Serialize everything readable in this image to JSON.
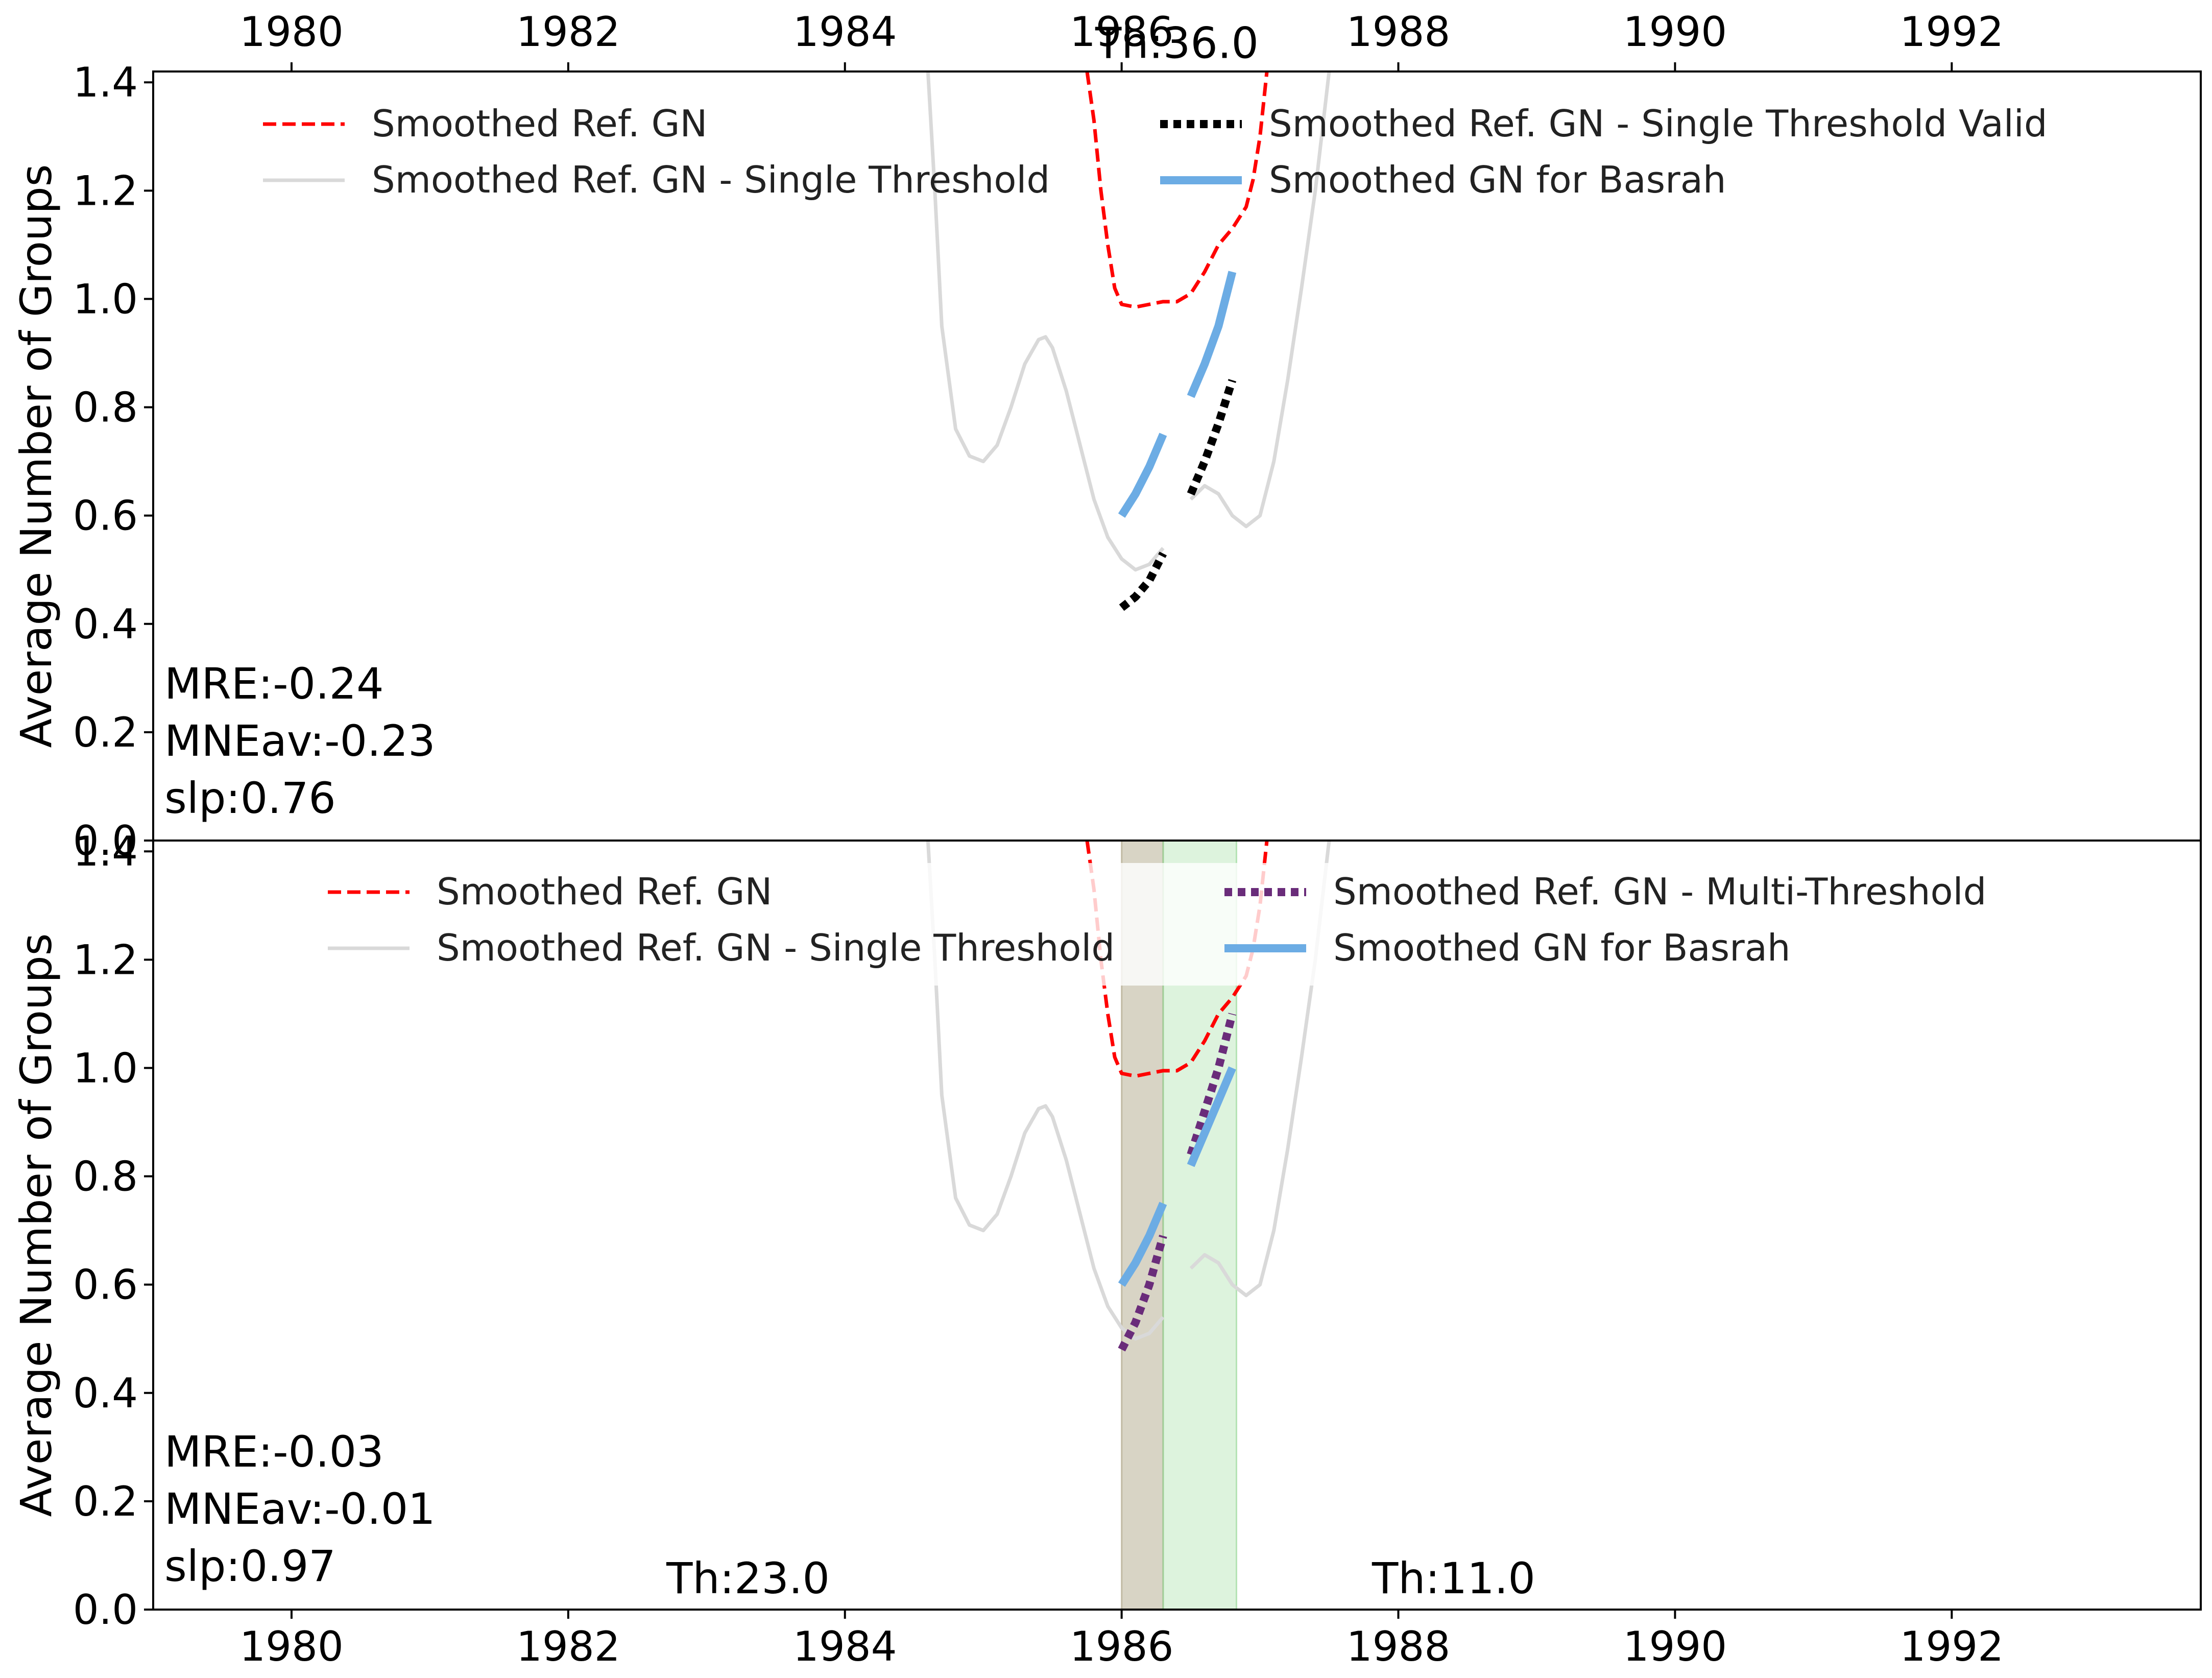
{
  "colors": {
    "ref": "#ff0000",
    "single": "#d9d9d9",
    "valid": "#000000",
    "basrah": "#6cace4",
    "multi": "#6a2c7a",
    "band1": "#a89f7e",
    "band2": "#8fd68f"
  },
  "chart_data": [
    {
      "type": "line",
      "panel": "top",
      "xlim": [
        1979.0,
        1993.8
      ],
      "ylim": [
        0.0,
        1.42
      ],
      "xticks": [
        1980,
        1982,
        1984,
        1986,
        1988,
        1990,
        1992
      ],
      "yticks": [
        0.0,
        0.2,
        0.4,
        0.6,
        0.8,
        1.0,
        1.2,
        1.4
      ],
      "ylabel": "Average Number of Groups",
      "stats": {
        "mre": "MRE:-0.24",
        "mneav": "MNEav:-0.23",
        "slp": "slp:0.76"
      },
      "threshold_labels": [
        {
          "text": "Th:36.0",
          "x": 1986.4,
          "y": 1.445
        }
      ],
      "legend": [
        "Smoothed Ref. GN",
        "Smoothed Ref. GN - Single Threshold Valid",
        "Smoothed Ref. GN - Single Threshold",
        "Smoothed GN for Basrah"
      ],
      "legend_position": "top",
      "series": [
        {
          "name": "Smoothed Ref. GN",
          "style": "ref",
          "points": [
            [
              1985.75,
              1.42
            ],
            [
              1985.8,
              1.33
            ],
            [
              1985.85,
              1.2
            ],
            [
              1985.9,
              1.1
            ],
            [
              1985.95,
              1.02
            ],
            [
              1986.0,
              0.99
            ],
            [
              1986.1,
              0.985
            ],
            [
              1986.2,
              0.99
            ],
            [
              1986.3,
              0.995
            ],
            [
              1986.4,
              0.995
            ],
            [
              1986.5,
              1.01
            ],
            [
              1986.6,
              1.05
            ],
            [
              1986.7,
              1.1
            ],
            [
              1986.8,
              1.13
            ],
            [
              1986.9,
              1.17
            ],
            [
              1986.95,
              1.22
            ],
            [
              1987.0,
              1.3
            ],
            [
              1987.05,
              1.42
            ]
          ]
        },
        {
          "name": "Smoothed Ref. GN - Single Threshold",
          "style": "single",
          "points": [
            [
              1984.6,
              1.42
            ],
            [
              1984.65,
              1.2
            ],
            [
              1984.7,
              0.95
            ],
            [
              1984.8,
              0.76
            ],
            [
              1984.9,
              0.71
            ],
            [
              1985.0,
              0.7
            ],
            [
              1985.1,
              0.73
            ],
            [
              1985.2,
              0.8
            ],
            [
              1985.3,
              0.88
            ],
            [
              1985.4,
              0.925
            ],
            [
              1985.45,
              0.93
            ],
            [
              1985.5,
              0.91
            ],
            [
              1985.6,
              0.83
            ],
            [
              1985.7,
              0.73
            ],
            [
              1985.8,
              0.63
            ],
            [
              1985.9,
              0.56
            ],
            [
              1986.0,
              0.52
            ],
            [
              1986.1,
              0.5
            ],
            [
              1986.2,
              0.51
            ],
            [
              1986.3,
              0.54
            ]
          ]
        },
        {
          "name": "Smoothed Ref. GN - Single Threshold",
          "style": "single",
          "points": [
            [
              1986.5,
              0.63
            ],
            [
              1986.6,
              0.655
            ],
            [
              1986.7,
              0.64
            ],
            [
              1986.8,
              0.6
            ],
            [
              1986.9,
              0.58
            ],
            [
              1987.0,
              0.6
            ],
            [
              1987.1,
              0.7
            ],
            [
              1987.2,
              0.85
            ],
            [
              1987.3,
              1.02
            ],
            [
              1987.4,
              1.2
            ],
            [
              1987.5,
              1.42
            ]
          ]
        },
        {
          "name": "Smoothed Ref. GN - Single Threshold Valid",
          "style": "valid",
          "points": [
            [
              1986.0,
              0.43
            ],
            [
              1986.1,
              0.45
            ],
            [
              1986.2,
              0.48
            ],
            [
              1986.3,
              0.53
            ]
          ]
        },
        {
          "name": "Smoothed Ref. GN - Single Threshold Valid",
          "style": "valid",
          "points": [
            [
              1986.5,
              0.64
            ],
            [
              1986.6,
              0.7
            ],
            [
              1986.7,
              0.77
            ],
            [
              1986.8,
              0.85
            ]
          ]
        },
        {
          "name": "Smoothed GN for Basrah",
          "style": "basrah",
          "points": [
            [
              1986.0,
              0.6
            ],
            [
              1986.1,
              0.64
            ],
            [
              1986.2,
              0.69
            ],
            [
              1986.3,
              0.75
            ]
          ]
        },
        {
          "name": "Smoothed GN for Basrah",
          "style": "basrah",
          "points": [
            [
              1986.5,
              0.82
            ],
            [
              1986.6,
              0.88
            ],
            [
              1986.7,
              0.95
            ],
            [
              1986.8,
              1.05
            ]
          ]
        }
      ]
    },
    {
      "type": "line",
      "panel": "bottom",
      "xlim": [
        1979.0,
        1993.8
      ],
      "ylim": [
        0.0,
        1.42
      ],
      "xticks": [
        1980,
        1982,
        1984,
        1986,
        1988,
        1990,
        1992
      ],
      "yticks": [
        0.0,
        0.2,
        0.4,
        0.6,
        0.8,
        1.0,
        1.2,
        1.4
      ],
      "ylabel": "Average Number of Groups",
      "stats": {
        "mre": "MRE:-0.03",
        "mneav": "MNEav:-0.01",
        "slp": "slp:0.97"
      },
      "threshold_labels": [
        {
          "text": "Th:23.0",
          "x": 1983.3,
          "y": 0.03
        },
        {
          "text": "Th:11.0",
          "x": 1988.4,
          "y": 0.03
        }
      ],
      "bands": [
        {
          "x0": 1986.0,
          "x1": 1986.3,
          "style": "band1"
        },
        {
          "x0": 1986.3,
          "x1": 1986.83,
          "style": "band2"
        }
      ],
      "legend": [
        "Smoothed Ref. GN",
        "Smoothed Ref. GN - Multi-Threshold",
        "Smoothed Ref. GN - Single Threshold",
        "Smoothed GN for Basrah"
      ],
      "legend_position": "top",
      "series": [
        {
          "name": "Smoothed Ref. GN",
          "style": "ref",
          "points": [
            [
              1985.75,
              1.42
            ],
            [
              1985.8,
              1.33
            ],
            [
              1985.85,
              1.2
            ],
            [
              1985.9,
              1.1
            ],
            [
              1985.95,
              1.02
            ],
            [
              1986.0,
              0.99
            ],
            [
              1986.1,
              0.985
            ],
            [
              1986.2,
              0.99
            ],
            [
              1986.3,
              0.995
            ],
            [
              1986.4,
              0.995
            ],
            [
              1986.5,
              1.01
            ],
            [
              1986.6,
              1.05
            ],
            [
              1986.7,
              1.1
            ],
            [
              1986.8,
              1.13
            ],
            [
              1986.9,
              1.17
            ],
            [
              1986.95,
              1.22
            ],
            [
              1987.0,
              1.3
            ],
            [
              1987.05,
              1.42
            ]
          ]
        },
        {
          "name": "Smoothed Ref. GN - Single Threshold",
          "style": "single",
          "points": [
            [
              1984.6,
              1.42
            ],
            [
              1984.65,
              1.2
            ],
            [
              1984.7,
              0.95
            ],
            [
              1984.8,
              0.76
            ],
            [
              1984.9,
              0.71
            ],
            [
              1985.0,
              0.7
            ],
            [
              1985.1,
              0.73
            ],
            [
              1985.2,
              0.8
            ],
            [
              1985.3,
              0.88
            ],
            [
              1985.4,
              0.925
            ],
            [
              1985.45,
              0.93
            ],
            [
              1985.5,
              0.91
            ],
            [
              1985.6,
              0.83
            ],
            [
              1985.7,
              0.73
            ],
            [
              1985.8,
              0.63
            ],
            [
              1985.9,
              0.56
            ],
            [
              1986.0,
              0.52
            ],
            [
              1986.1,
              0.5
            ],
            [
              1986.2,
              0.51
            ],
            [
              1986.3,
              0.54
            ]
          ]
        },
        {
          "name": "Smoothed Ref. GN - Single Threshold",
          "style": "single",
          "points": [
            [
              1986.5,
              0.63
            ],
            [
              1986.6,
              0.655
            ],
            [
              1986.7,
              0.64
            ],
            [
              1986.8,
              0.6
            ],
            [
              1986.9,
              0.58
            ],
            [
              1987.0,
              0.6
            ],
            [
              1987.1,
              0.7
            ],
            [
              1987.2,
              0.85
            ],
            [
              1987.3,
              1.02
            ],
            [
              1987.4,
              1.2
            ],
            [
              1987.5,
              1.42
            ]
          ]
        },
        {
          "name": "Smoothed Ref. GN - Multi-Threshold",
          "style": "multi",
          "points": [
            [
              1986.0,
              0.48
            ],
            [
              1986.1,
              0.53
            ],
            [
              1986.2,
              0.6
            ],
            [
              1986.3,
              0.69
            ]
          ]
        },
        {
          "name": "Smoothed Ref. GN - Multi-Threshold",
          "style": "multi",
          "points": [
            [
              1986.5,
              0.84
            ],
            [
              1986.6,
              0.92
            ],
            [
              1986.7,
              1.0
            ],
            [
              1986.8,
              1.1
            ]
          ]
        },
        {
          "name": "Smoothed GN for Basrah",
          "style": "basrah",
          "points": [
            [
              1986.0,
              0.6
            ],
            [
              1986.1,
              0.64
            ],
            [
              1986.2,
              0.69
            ],
            [
              1986.3,
              0.75
            ]
          ]
        },
        {
          "name": "Smoothed GN for Basrah",
          "style": "basrah",
          "points": [
            [
              1986.5,
              0.82
            ],
            [
              1986.6,
              0.88
            ],
            [
              1986.7,
              0.94
            ],
            [
              1986.8,
              1.0
            ]
          ]
        }
      ]
    }
  ]
}
